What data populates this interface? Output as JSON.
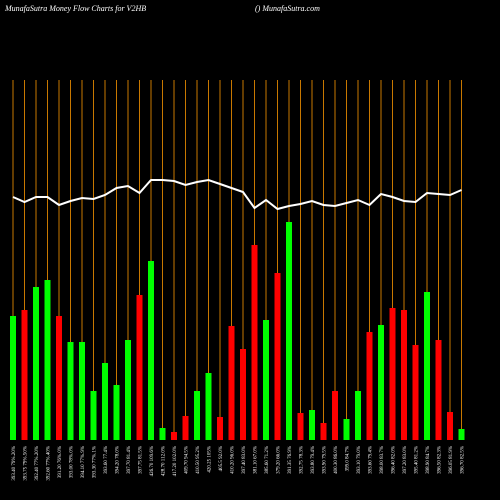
{
  "chart_data": {
    "type": "bar",
    "title": "MunafaSutra  Money Flow  Charts for V2HB",
    "subtitle": "() MunafaSutra.com",
    "categories": [
      "393.40 79%.20%",
      "393.75 79%.50%",
      "392.40 77%.20%",
      "392.60 77%.40%",
      "391.20 76%.0%",
      "393.00 78%.0%",
      "394.10 77%.9%",
      "393.30 77%.1%",
      "393.60 77.4%",
      "394.20 78.0%",
      "397.70 81.4%",
      "397.75 81.5%",
      "426.70 109.6%",
      "428.70 112.0%",
      "417.20 102.0%",
      "409.70 94.5%",
      "410.50 95.2%",
      "420.25 105%",
      "405.5 92.0%",
      "410.20 96.0%",
      "397.40 83.0%",
      "381.10 67.0%",
      "385.60 71.2%",
      "379.20 66.0%",
      "391.35 76.9%",
      "392.75 78.3%",
      "393.80 79.4%",
      "393.90 79.5%",
      "400.30 86.0%",
      "399.0 84.7%",
      "393.10 79.0%",
      "393.60 79.4%",
      "398.00 83.7%",
      "396.40 82.0%",
      "397.20 83.0%",
      "395.40 81.2%",
      "398.90 84.7%",
      "396.50 82.3%",
      "396.05 81.9%",
      "396.70 82.5%"
    ],
    "values": [
      124,
      130,
      153,
      160,
      124,
      98,
      98,
      49,
      77,
      55,
      100,
      145,
      179,
      12,
      8,
      24,
      49,
      67,
      23,
      114,
      91,
      195,
      120,
      167,
      218,
      27,
      30,
      17,
      49,
      21,
      49,
      108,
      115,
      132,
      130,
      95,
      148,
      100,
      28,
      11
    ],
    "colors": [
      "#00ff00",
      "#ff0000",
      "#00ff00",
      "#00ff00",
      "#ff0000",
      "#00ff00",
      "#00ff00",
      "#00ff00",
      "#00ff00",
      "#00ff00",
      "#00ff00",
      "#ff0000",
      "#00ff00",
      "#00ff00",
      "#ff0000",
      "#ff0000",
      "#00ff00",
      "#00ff00",
      "#ff0000",
      "#ff0000",
      "#ff0000",
      "#ff0000",
      "#00ff00",
      "#ff0000",
      "#00ff00",
      "#ff0000",
      "#00ff00",
      "#ff0000",
      "#ff0000",
      "#00ff00",
      "#00ff00",
      "#ff0000",
      "#00ff00",
      "#ff0000",
      "#ff0000",
      "#ff0000",
      "#00ff00",
      "#ff0000",
      "#ff0000",
      "#00ff00"
    ],
    "line": {
      "values": [
        243,
        238,
        243,
        243,
        235,
        239,
        242,
        241,
        245,
        252,
        254,
        247,
        260,
        260,
        259,
        255,
        258,
        260,
        256,
        252,
        248,
        232,
        240,
        231,
        234,
        236,
        239,
        235,
        234,
        237,
        240,
        235,
        246,
        243,
        239,
        238,
        247,
        246,
        245,
        250
      ],
      "color": "#ffffff"
    },
    "grid_color": "#c87800",
    "ylim": [
      0,
      360
    ]
  }
}
